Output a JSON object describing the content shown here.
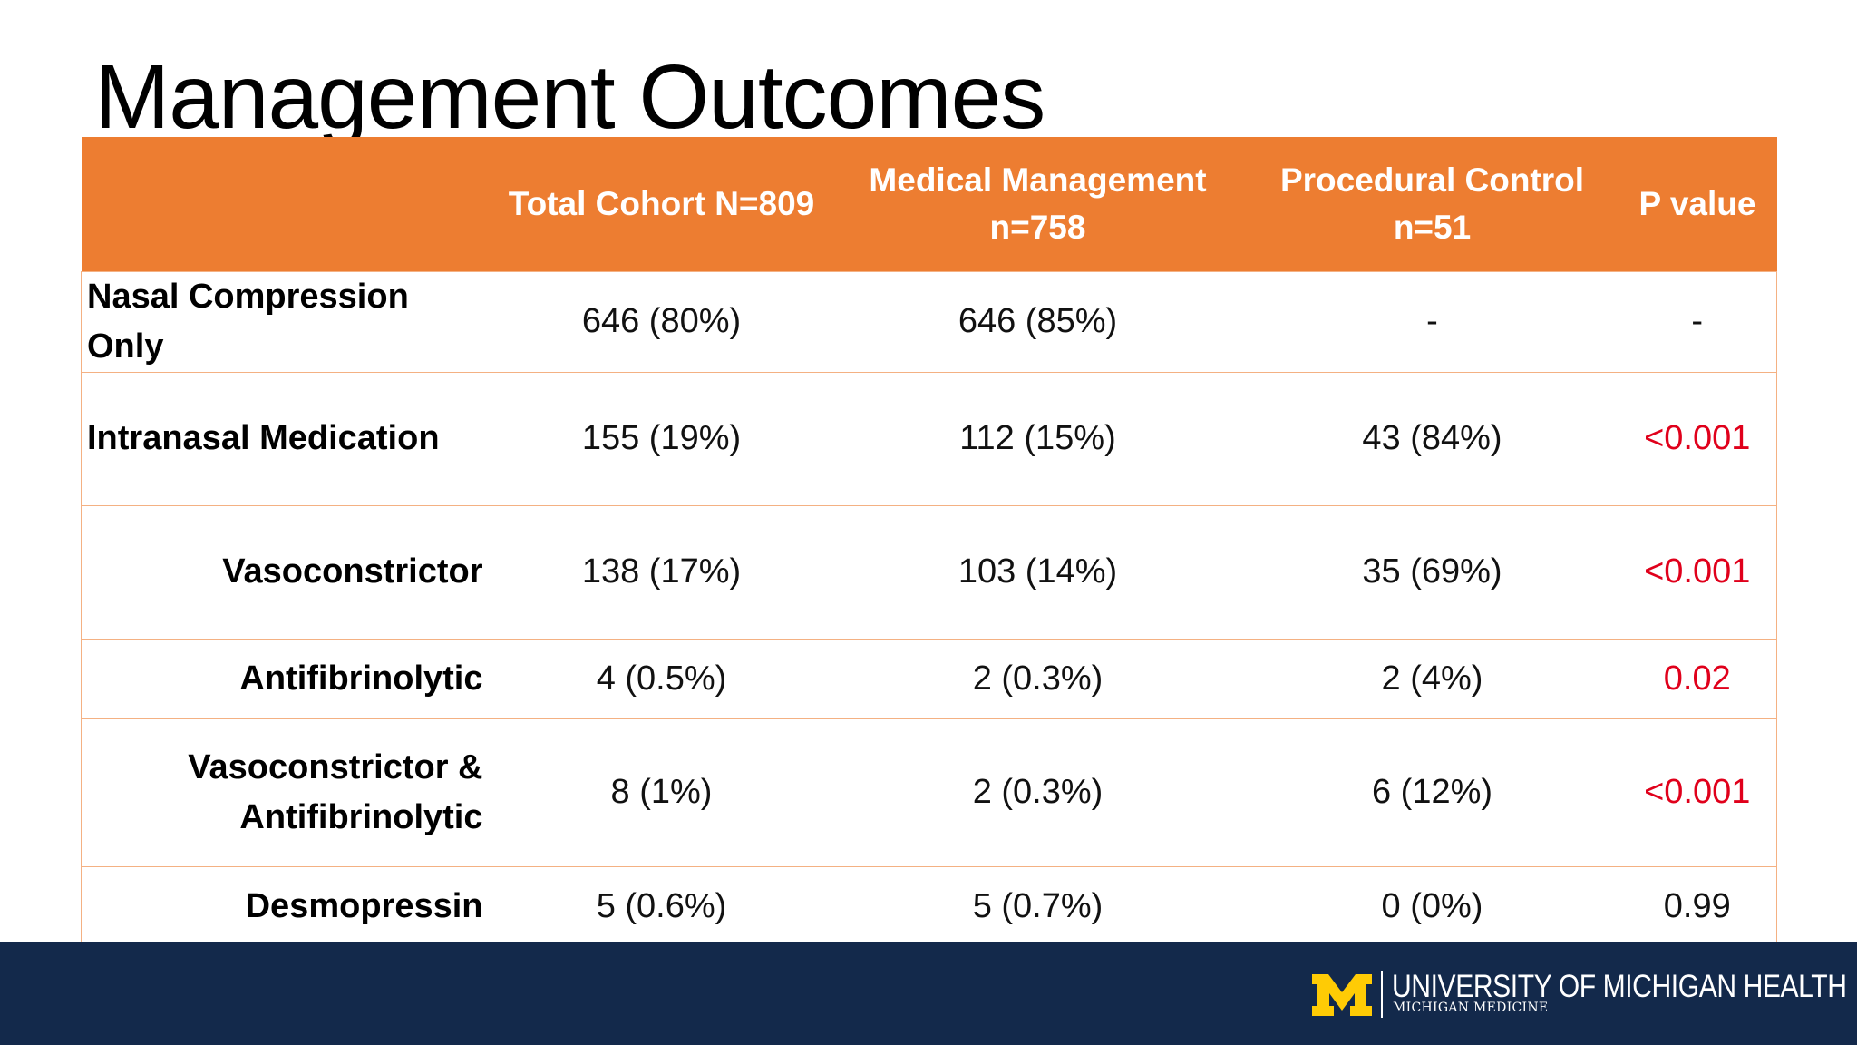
{
  "slide": {
    "title": "Management Outcomes"
  },
  "table": {
    "headers": [
      "",
      "Total Cohort N=809",
      "Medical Management n=758",
      "Procedural Control n=51",
      "P value"
    ],
    "rows": [
      {
        "label": "Nasal Compression Only",
        "total": "646 (80%)",
        "medical": "646 (85%)",
        "procedural": "-",
        "p": "-"
      },
      {
        "label": "Intranasal Medication",
        "total": "155 (19%)",
        "medical": "112 (15%)",
        "procedural": "43 (84%)",
        "p": "<0.001"
      },
      {
        "label": "Vasoconstrictor",
        "total": "138 (17%)",
        "medical": "103 (14%)",
        "procedural": "35 (69%)",
        "p": "<0.001"
      },
      {
        "label": "Antifibrinolytic",
        "total": "4 (0.5%)",
        "medical": "2 (0.3%)",
        "procedural": "2 (4%)",
        "p": "0.02"
      },
      {
        "label": "Vasoconstrictor & Antifibrinolytic",
        "total": "8 (1%)",
        "medical": "2 (0.3%)",
        "procedural": "6 (12%)",
        "p": "<0.001"
      },
      {
        "label": "Desmopressin",
        "total": "5 (0.6%)",
        "medical": "5 (0.7%)",
        "procedural": "0 (0%)",
        "p": "0.99"
      }
    ]
  },
  "footer": {
    "logo_main": "UNIVERSITY OF MICHIGAN HEALTH",
    "logo_sub": "MICHIGAN MEDICINE",
    "logo_icon": "block-m-logo"
  },
  "colors": {
    "header_bg": "#ED7D31",
    "row_border": "#F4B183",
    "significant_p": "#E0001B",
    "footer_bg": "#13294B",
    "logo_maize": "#FFCB05"
  }
}
